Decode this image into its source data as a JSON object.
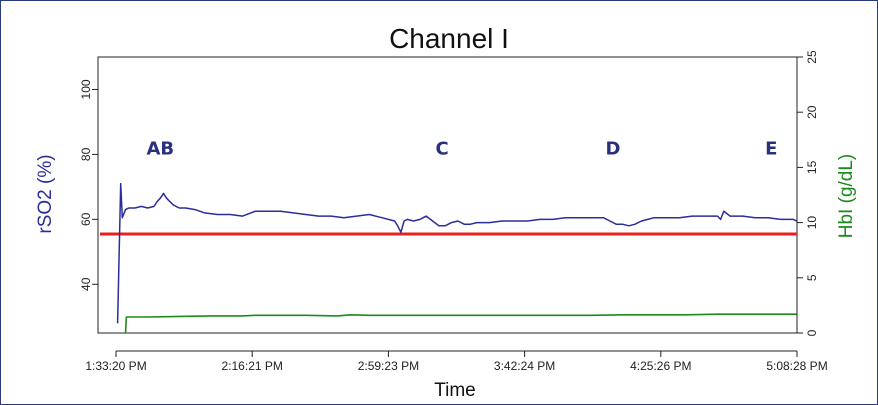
{
  "chart_data": {
    "type": "line",
    "title": "Channel I",
    "xlabel": "Time",
    "ylabel": "rSO2 (%)",
    "y2label": "HbI (g/dL)",
    "x_ticks": [
      "1:33:20 PM",
      "2:16:21 PM",
      "2:59:23 PM",
      "3:42:24 PM",
      "4:25:26 PM",
      "5:08:28 PM"
    ],
    "x_range_minutes": [
      0,
      215.13
    ],
    "ylim": [
      25,
      110
    ],
    "y_ticks": [
      40,
      60,
      80,
      100
    ],
    "y2lim": [
      0,
      25
    ],
    "y2_ticks": [
      0,
      5,
      10,
      15,
      20,
      25
    ],
    "grid": false,
    "threshold": {
      "axis": "left",
      "value": 55.5,
      "color": "#e8211d"
    },
    "event_markers": [
      {
        "label": "AB",
        "x": 14
      },
      {
        "label": "C",
        "x": 103
      },
      {
        "label": "D",
        "x": 157
      },
      {
        "label": "E",
        "x": 207
      }
    ],
    "series": [
      {
        "axis": "left",
        "color": "#2a2d9c",
        "x": [
          0.5,
          1.5,
          2,
          3,
          4,
          6,
          8,
          10,
          12,
          13,
          14,
          15,
          16,
          17,
          18,
          19,
          20,
          22,
          25,
          28,
          32,
          36,
          40,
          44,
          48,
          52,
          56,
          60,
          64,
          68,
          72,
          76,
          80,
          84,
          88,
          89,
          90,
          91,
          92,
          94,
          96,
          98,
          100,
          102,
          104,
          106,
          108,
          110,
          112,
          114,
          118,
          122,
          126,
          130,
          134,
          138,
          142,
          146,
          150,
          154,
          156,
          158,
          160,
          162,
          164,
          166,
          168,
          170,
          174,
          178,
          182,
          186,
          190,
          191,
          192,
          194,
          198,
          202,
          206,
          210,
          214,
          215
        ],
        "values": [
          28,
          71,
          60.5,
          63,
          63.5,
          63.5,
          64,
          63.5,
          64,
          65.5,
          66.5,
          68,
          66.5,
          65.5,
          64.5,
          64,
          63.5,
          63.5,
          63,
          62,
          61.5,
          61.5,
          61,
          62.5,
          62.5,
          62.5,
          62,
          61.5,
          61,
          61,
          60.5,
          61,
          61.5,
          60.5,
          59.5,
          58,
          56,
          59.5,
          60,
          59.5,
          60,
          61,
          59.5,
          58,
          58,
          59,
          59.5,
          58.5,
          58.5,
          59,
          59,
          59.5,
          59.5,
          59.5,
          60,
          60,
          60.5,
          60.5,
          60.5,
          60.5,
          59.5,
          58.5,
          58.5,
          58,
          58.5,
          59.5,
          60,
          60.5,
          60.5,
          60.5,
          61,
          61,
          61,
          60,
          62.5,
          61,
          61,
          60.5,
          60.5,
          60,
          60,
          59.5
        ]
      },
      {
        "axis": "right",
        "color": "#1d8a1d",
        "x": [
          3,
          3.3,
          4,
          10,
          20,
          30,
          40,
          44,
          50,
          60,
          70,
          74,
          80,
          90,
          100,
          110,
          120,
          130,
          140,
          150,
          160,
          170,
          180,
          190,
          200,
          210,
          215
        ],
        "values": [
          0,
          1.45,
          1.45,
          1.45,
          1.5,
          1.55,
          1.55,
          1.6,
          1.6,
          1.6,
          1.55,
          1.65,
          1.6,
          1.6,
          1.6,
          1.6,
          1.6,
          1.6,
          1.6,
          1.6,
          1.65,
          1.65,
          1.65,
          1.7,
          1.7,
          1.7,
          1.7
        ]
      }
    ]
  }
}
